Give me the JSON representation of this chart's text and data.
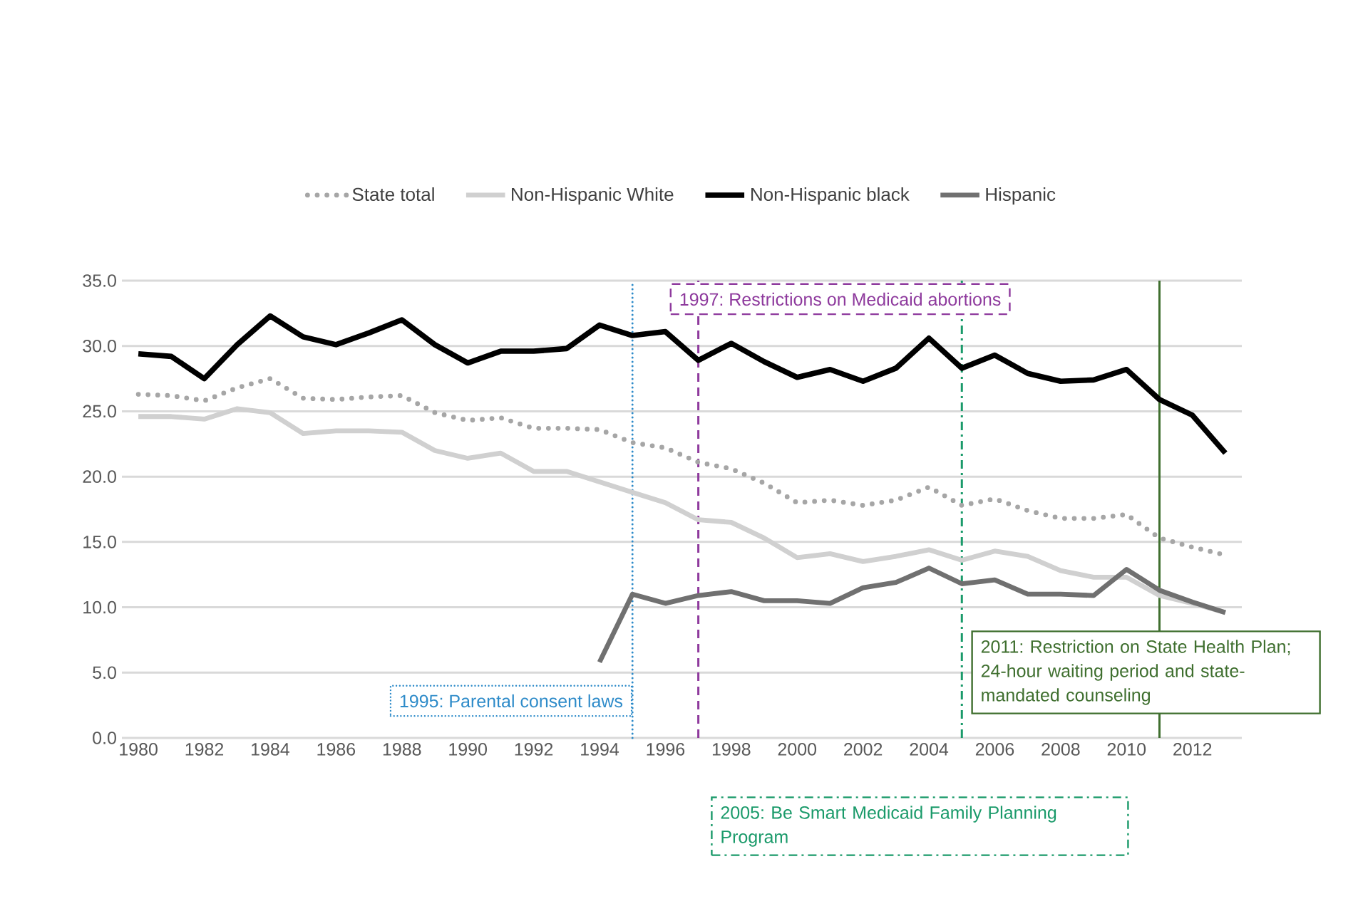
{
  "chart_data": {
    "type": "line",
    "x": [
      1980,
      1981,
      1982,
      1983,
      1984,
      1985,
      1986,
      1987,
      1988,
      1989,
      1990,
      1991,
      1992,
      1993,
      1994,
      1995,
      1996,
      1997,
      1998,
      1999,
      2000,
      2001,
      2002,
      2003,
      2004,
      2005,
      2006,
      2007,
      2008,
      2009,
      2010,
      2011,
      2012,
      2013
    ],
    "series": [
      {
        "name": "State total",
        "color": "#a6a6a6",
        "line_style": "dotted",
        "values": [
          26.3,
          26.2,
          25.8,
          26.8,
          27.5,
          26.0,
          25.9,
          26.1,
          26.2,
          24.9,
          24.3,
          24.5,
          23.7,
          23.7,
          23.6,
          22.6,
          22.2,
          21.1,
          20.6,
          19.5,
          18.0,
          18.2,
          17.8,
          18.2,
          19.2,
          17.8,
          18.3,
          17.4,
          16.8,
          16.8,
          17.1,
          15.3,
          14.6,
          14.0
        ]
      },
      {
        "name": "Non-Hispanic White",
        "color": "#d0d0d0",
        "line_style": "solid",
        "values": [
          24.6,
          24.6,
          24.4,
          25.2,
          24.9,
          23.3,
          23.5,
          23.5,
          23.4,
          22.0,
          21.4,
          21.8,
          20.4,
          20.4,
          19.6,
          18.8,
          18.0,
          16.7,
          16.5,
          15.3,
          13.8,
          14.1,
          13.5,
          13.9,
          14.4,
          13.6,
          14.3,
          13.9,
          12.8,
          12.3,
          12.3,
          10.9,
          10.3,
          9.6
        ]
      },
      {
        "name": "Non-Hispanic black",
        "color": "#000000",
        "line_style": "solid",
        "values": [
          29.4,
          29.2,
          27.5,
          30.1,
          32.3,
          30.7,
          30.1,
          31.0,
          32.0,
          30.1,
          28.7,
          29.6,
          29.6,
          29.8,
          31.6,
          30.8,
          31.1,
          28.9,
          30.2,
          28.8,
          27.6,
          28.2,
          27.3,
          28.3,
          30.6,
          28.3,
          29.3,
          27.9,
          27.3,
          27.4,
          28.2,
          25.9,
          24.7,
          21.8
        ]
      },
      {
        "name": "Hispanic",
        "color": "#707070",
        "line_style": "solid",
        "values": [
          null,
          null,
          null,
          null,
          null,
          null,
          null,
          null,
          null,
          null,
          null,
          null,
          null,
          null,
          5.8,
          11.0,
          10.3,
          10.9,
          11.2,
          10.5,
          10.5,
          10.3,
          11.5,
          11.9,
          13.0,
          11.8,
          12.1,
          11.0,
          11.0,
          10.9,
          12.9,
          11.3,
          10.4,
          9.6
        ]
      }
    ],
    "xlim": [
      1979.5,
      2013.5
    ],
    "ylim": [
      0,
      35
    ],
    "xticks": [
      1980,
      1982,
      1984,
      1986,
      1988,
      1990,
      1992,
      1994,
      1996,
      1998,
      2000,
      2002,
      2004,
      2006,
      2008,
      2010,
      2012
    ],
    "yticks": [
      {
        "value": 0,
        "label": "0.0"
      },
      {
        "value": 5,
        "label": "5.0"
      },
      {
        "value": 10,
        "label": "10.0"
      },
      {
        "value": 15,
        "label": "15.0"
      },
      {
        "value": 20,
        "label": "20.0"
      },
      {
        "value": 25,
        "label": "25.0"
      },
      {
        "value": 30,
        "label": "30.0"
      },
      {
        "value": 35,
        "label": "35.0"
      }
    ],
    "grid": "y",
    "legend": "top",
    "marker": "none",
    "ref_lines": [
      {
        "axis": "x",
        "value": 1995,
        "label": "1995: Parental consent laws",
        "color": "#2e8bc9",
        "line_style": "dotted"
      },
      {
        "axis": "x",
        "value": 1997,
        "label": "1997: Restrictions on Medicaid abortions",
        "color": "#8e3a9d",
        "line_style": "dashed"
      },
      {
        "axis": "x",
        "value": 2005,
        "label": "2005: Be Smart Medicaid Family Planning Program",
        "color": "#1a9a6a",
        "line_style": "dashdot"
      },
      {
        "axis": "x",
        "value": 2011,
        "label": "2011: Restriction on State Health Plan; 24-hour waiting period and state-mandated counseling",
        "color": "#3f6f2f",
        "line_style": "solid"
      }
    ]
  }
}
